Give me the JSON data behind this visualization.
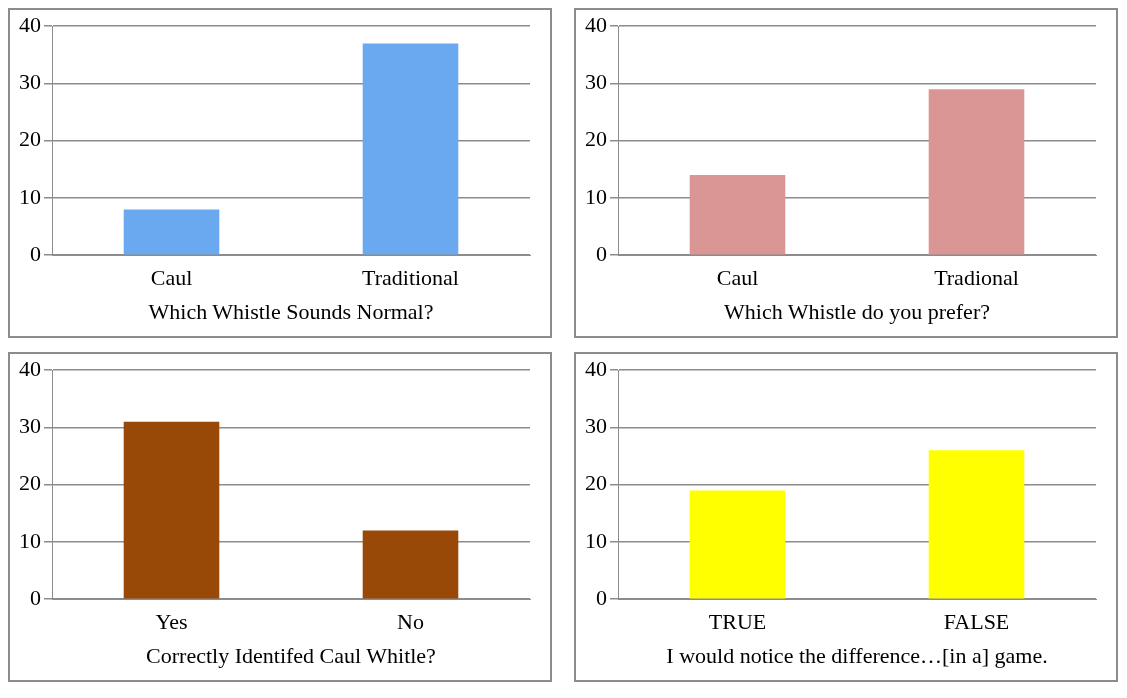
{
  "chart_data": [
    {
      "type": "bar",
      "xlabel": "Which Whistle Sounds Normal?",
      "categories": [
        "Caul",
        "Traditional"
      ],
      "values": [
        8,
        37
      ],
      "color": "#6aa8ef",
      "ylim": [
        0,
        40
      ],
      "yticks": [
        0,
        10,
        20,
        30,
        40
      ],
      "grid": "y"
    },
    {
      "type": "bar",
      "xlabel": "Which Whistle do you prefer?",
      "categories": [
        "Caul",
        "Tradional"
      ],
      "values": [
        14,
        29
      ],
      "color": "#d99694",
      "ylim": [
        0,
        40
      ],
      "yticks": [
        0,
        10,
        20,
        30,
        40
      ],
      "grid": "y"
    },
    {
      "type": "bar",
      "xlabel": "Correctly Identifed Caul Whitle?",
      "categories": [
        "Yes",
        "No"
      ],
      "values": [
        31,
        12
      ],
      "color": "#984807",
      "ylim": [
        0,
        40
      ],
      "yticks": [
        0,
        10,
        20,
        30,
        40
      ],
      "grid": "y"
    },
    {
      "type": "bar",
      "xlabel": "I would notice the difference…[in a] game.",
      "categories": [
        "TRUE",
        "FALSE"
      ],
      "values": [
        19,
        26
      ],
      "color": "#ffff00",
      "ylim": [
        0,
        40
      ],
      "yticks": [
        0,
        10,
        20,
        30,
        40
      ],
      "grid": "y"
    }
  ]
}
